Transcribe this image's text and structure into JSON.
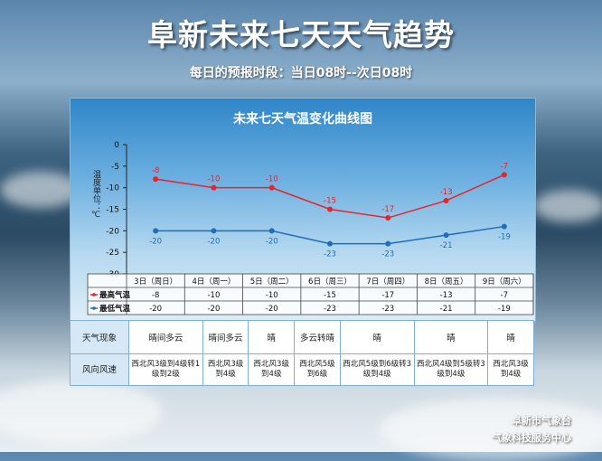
{
  "header": {
    "title": "阜新未来七天天气趋势",
    "subtitle": "每日的预报时段：当日08时--次日08时"
  },
  "chart_data": {
    "type": "line",
    "title": "未来七天气温变化曲线图",
    "ylabel": "温度单位：℃",
    "ylim": [
      -30,
      0
    ],
    "yticks": [
      0,
      -5,
      -10,
      -15,
      -20,
      -25,
      -30
    ],
    "categories": [
      "3日（周日）",
      "4日（周一）",
      "5日（周二）",
      "6日（周三）",
      "7日（周四）",
      "8日（周五）",
      "9日（周六）"
    ],
    "series": [
      {
        "name": "最高气温",
        "values": [
          -8,
          -10,
          -10,
          -15,
          -17,
          -13,
          -7
        ],
        "color": "#e8232a"
      },
      {
        "name": "最低气温",
        "values": [
          -20,
          -20,
          -20,
          -23,
          -23,
          -21,
          -19
        ],
        "color": "#1f6fb8"
      }
    ],
    "grid": false
  },
  "table": {
    "weather_label": "天气现象",
    "wind_label": "风向风速",
    "weather": [
      "晴间多云",
      "晴间多云",
      "晴",
      "多云转晴",
      "晴",
      "晴",
      "晴"
    ],
    "wind": [
      "西北风3级到4级转1级到2级",
      "西北风3级到4级",
      "西北风3级到4级",
      "西北风5级到6级",
      "西北风5级到6级转3级到4级",
      "西北风4级到5级转3级到4级",
      "西北风3级到4级"
    ]
  },
  "footer": {
    "org_line1": "阜新市气象台",
    "org_line2": "气象科技服务中心"
  },
  "colors": {
    "high": "#e8232a",
    "low": "#1f6fb8"
  }
}
